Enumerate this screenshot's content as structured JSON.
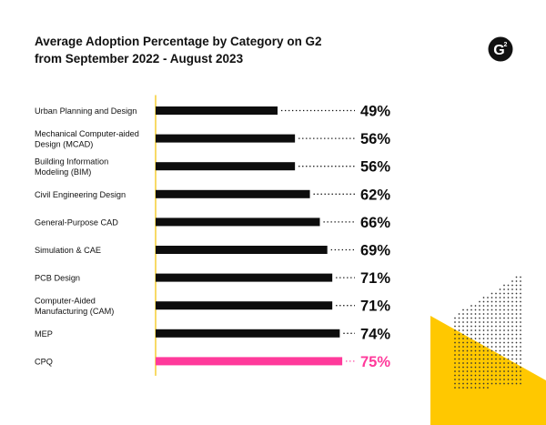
{
  "chart_data": {
    "type": "bar",
    "orientation": "horizontal",
    "title": [
      "Average Adoption Percentage by Category on G2",
      "from September 2022 - August 2023"
    ],
    "xlabel": "",
    "ylabel": "",
    "xlim": [
      0,
      100
    ],
    "grid": false,
    "categories": [
      [
        "Urban Planning and Design"
      ],
      [
        "Mechanical Computer-aided",
        "Design (MCAD)"
      ],
      [
        "Building Information",
        "Modeling (BIM)"
      ],
      [
        "Civil Engineering Design"
      ],
      [
        "General-Purpose CAD"
      ],
      [
        "Simulation & CAE"
      ],
      [
        "PCB Design"
      ],
      [
        "Computer-Aided",
        "Manufacturing (CAM)"
      ],
      [
        "MEP"
      ],
      [
        "CPQ"
      ]
    ],
    "values": [
      49,
      56,
      56,
      62,
      66,
      69,
      71,
      71,
      74,
      75
    ],
    "value_labels": [
      "49%",
      "56%",
      "56%",
      "62%",
      "66%",
      "69%",
      "71%",
      "71%",
      "74%",
      "75%"
    ],
    "highlight_index": 9
  },
  "logo": {
    "name": "G2",
    "text": "G",
    "superscript": "2"
  },
  "colors": {
    "bar": "#0d0d0d",
    "highlight": "#ff3a9b",
    "axis": "#f2c100",
    "accent_yellow": "#ffc800",
    "text": "#111111",
    "dots": "#333333"
  }
}
